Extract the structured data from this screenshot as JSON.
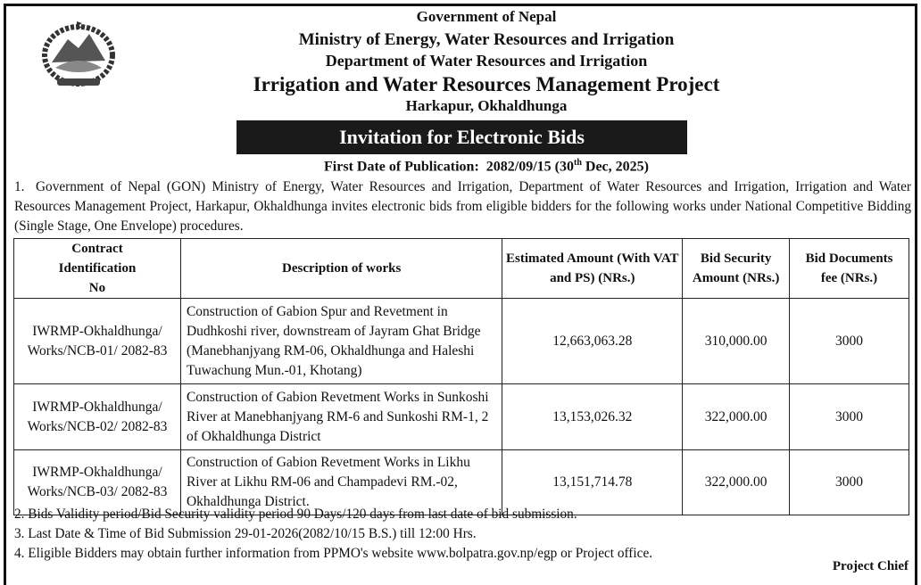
{
  "header": {
    "line1": "Government of Nepal",
    "line2": "Ministry of Energy, Water Resources and Irrigation",
    "line3": "Department of Water Resources and Irrigation",
    "line4": "Irrigation and Water Resources Management Project",
    "line5": "Harkapur, Okhaldhunga"
  },
  "title": "Invitation for Electronic Bids",
  "publication": {
    "label": "First Date of Publication:",
    "date": "2082/09/15 (30",
    "sup": "th",
    "rest": " Dec, 2025)"
  },
  "intro": {
    "num": "1.",
    "text": "Government of Nepal (GON) Ministry of Energy, Water Resources and Irrigation, Department of Water Resources and Irrigation, Irrigation and Water Resources Management Project, Harkapur, Okhaldhunga invites electronic bids from eligible bidders for the following works under National Competitive Bidding (Single Stage, One Envelope) procedures."
  },
  "table": {
    "headers": [
      "Contract Identification No",
      "Description of works",
      "Estimated Amount (With VAT and PS) (NRs.)",
      "Bid Security Amount (NRs.)",
      "Bid Documents fee (NRs.)"
    ],
    "rows": [
      {
        "id": "IWRMP-Okhaldhunga/ Works/NCB-01/ 2082-83",
        "desc": "Construction of Gabion Spur and Revetment in Dudhkoshi river, downstream of Jayram Ghat Bridge (Manebhanjyang RM-06, Okhaldhunga and Haleshi Tuwachung Mun.-01, Khotang)",
        "amount": "12,663,063.28",
        "security": "310,000.00",
        "fee": "3000"
      },
      {
        "id": "IWRMP-Okhaldhunga/ Works/NCB-02/ 2082-83",
        "desc": "Construction of Gabion Revetment Works in Sunkoshi River at Manebhanjyang RM-6 and Sunkoshi RM-1, 2 of  Okhaldhunga District",
        "amount": "13,153,026.32",
        "security": "322,000.00",
        "fee": "3000"
      },
      {
        "id": "IWRMP-Okhaldhunga/ Works/NCB-03/ 2082-83",
        "desc": "Construction of Gabion Revetment Works in Likhu River at Likhu RM-06 and Champadevi RM.-02, Okhaldhunga District.",
        "amount": "13,151,714.78",
        "security": "322,000.00",
        "fee": "3000"
      }
    ]
  },
  "notes": [
    "2.  Bids Validity period/Bid Security validity period 90 Days/120 days from last date of bid submission.",
    "3.  Last Date & Time of Bid Submission 29-01-2026(2082/10/15 B.S.) till 12:00 Hrs.",
    "4.  Eligible Bidders may obtain further information from PPMO's website www.bolpatra.gov.np/egp or Project office."
  ],
  "signature": "Project Chief"
}
